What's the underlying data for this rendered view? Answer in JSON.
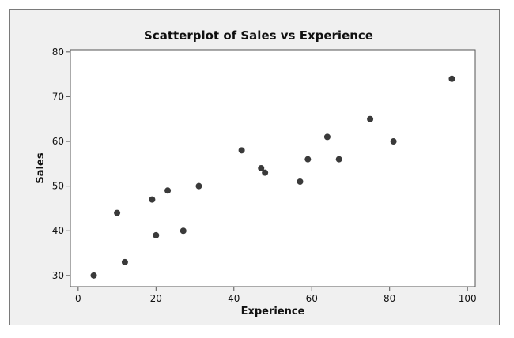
{
  "chart_data": {
    "type": "scatter",
    "title": "Scatterplot of Sales vs Experience",
    "xlabel": "Experience",
    "ylabel": "Sales",
    "xlim": [
      -2,
      102
    ],
    "ylim": [
      27.5,
      80.5
    ],
    "xticks": [
      0,
      20,
      40,
      60,
      80,
      100
    ],
    "yticks": [
      30,
      40,
      50,
      60,
      70,
      80
    ],
    "grid": false,
    "marker_color": "#3a3a3a",
    "points": [
      {
        "x": 4,
        "y": 30
      },
      {
        "x": 10,
        "y": 44
      },
      {
        "x": 12,
        "y": 33
      },
      {
        "x": 19,
        "y": 47
      },
      {
        "x": 20,
        "y": 39
      },
      {
        "x": 23,
        "y": 49
      },
      {
        "x": 27,
        "y": 40
      },
      {
        "x": 31,
        "y": 50
      },
      {
        "x": 42,
        "y": 58
      },
      {
        "x": 47,
        "y": 54
      },
      {
        "x": 48,
        "y": 53
      },
      {
        "x": 57,
        "y": 51
      },
      {
        "x": 59,
        "y": 56
      },
      {
        "x": 64,
        "y": 61
      },
      {
        "x": 67,
        "y": 56
      },
      {
        "x": 75,
        "y": 65
      },
      {
        "x": 81,
        "y": 60
      },
      {
        "x": 96,
        "y": 74
      }
    ]
  }
}
